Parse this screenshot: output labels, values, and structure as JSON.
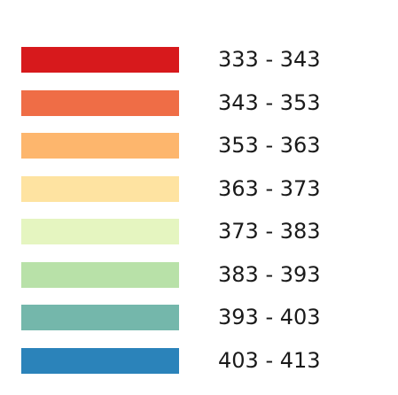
{
  "legend": {
    "items": [
      {
        "label": "333 - 343",
        "color": "#d7191c"
      },
      {
        "label": "343 - 353",
        "color": "#ef6d46"
      },
      {
        "label": "353 - 363",
        "color": "#fdb66d"
      },
      {
        "label": "363 - 373",
        "color": "#fee3a1"
      },
      {
        "label": "373 - 383",
        "color": "#e5f5c0"
      },
      {
        "label": "383 - 393",
        "color": "#b8e1a8"
      },
      {
        "label": "393 - 403",
        "color": "#74b7ab"
      },
      {
        "label": "403 - 413",
        "color": "#2b83ba"
      }
    ]
  }
}
